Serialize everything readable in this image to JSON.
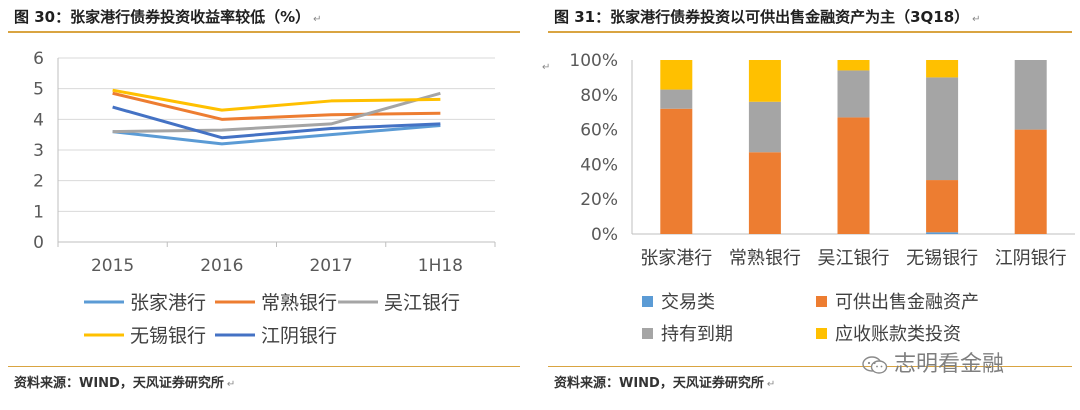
{
  "left": {
    "title": "图 30：张家港行债券投资收益率较低（%）",
    "source": "资料来源：WIND，天风证券研究所"
  },
  "right": {
    "title": "图 31：张家港行债券投资以可供出售金融资产为主（3Q18）",
    "source": "资料来源：WIND，天风证券研究所"
  },
  "watermark": {
    "text": "志明看金融",
    "icon": "wechat-icon"
  },
  "chart_data": [
    {
      "type": "line",
      "categories": [
        "2015",
        "2016",
        "2017",
        "1H18"
      ],
      "ylim": [
        0,
        6
      ],
      "yticks": [
        "0",
        "1",
        "2",
        "3",
        "4",
        "5",
        "6"
      ],
      "grid": true,
      "legend_position": "bottom",
      "series": [
        {
          "name": "张家港行",
          "color": "#5b9bd5",
          "values": [
            3.6,
            3.2,
            3.5,
            3.8
          ]
        },
        {
          "name": "常熟银行",
          "color": "#ed7d31",
          "values": [
            4.85,
            4.0,
            4.15,
            4.2
          ]
        },
        {
          "name": "吴江银行",
          "color": "#a5a5a5",
          "values": [
            3.6,
            3.65,
            3.85,
            4.85
          ]
        },
        {
          "name": "无锡银行",
          "color": "#ffc000",
          "values": [
            4.95,
            4.3,
            4.6,
            4.65
          ]
        },
        {
          "name": "江阴银行",
          "color": "#4472c4",
          "values": [
            4.4,
            3.4,
            3.7,
            3.85
          ]
        }
      ]
    },
    {
      "type": "bar",
      "stacked": true,
      "categories": [
        "张家港行",
        "常熟银行",
        "吴江银行",
        "无锡银行",
        "江阴银行"
      ],
      "ylim": [
        0,
        100
      ],
      "yticks": [
        "0%",
        "20%",
        "40%",
        "60%",
        "80%",
        "100%"
      ],
      "grid": false,
      "legend_position": "bottom",
      "series": [
        {
          "name": "交易类",
          "color": "#5b9bd5",
          "values": [
            0,
            0,
            0,
            1,
            0
          ]
        },
        {
          "name": "可供出售金融资产",
          "color": "#ed7d31",
          "values": [
            72,
            47,
            67,
            30,
            60
          ]
        },
        {
          "name": "持有到期",
          "color": "#a5a5a5",
          "values": [
            11,
            29,
            27,
            59,
            40
          ]
        },
        {
          "name": "应收账款类投资",
          "color": "#ffc000",
          "values": [
            17,
            24,
            6,
            10,
            0
          ]
        }
      ]
    }
  ]
}
